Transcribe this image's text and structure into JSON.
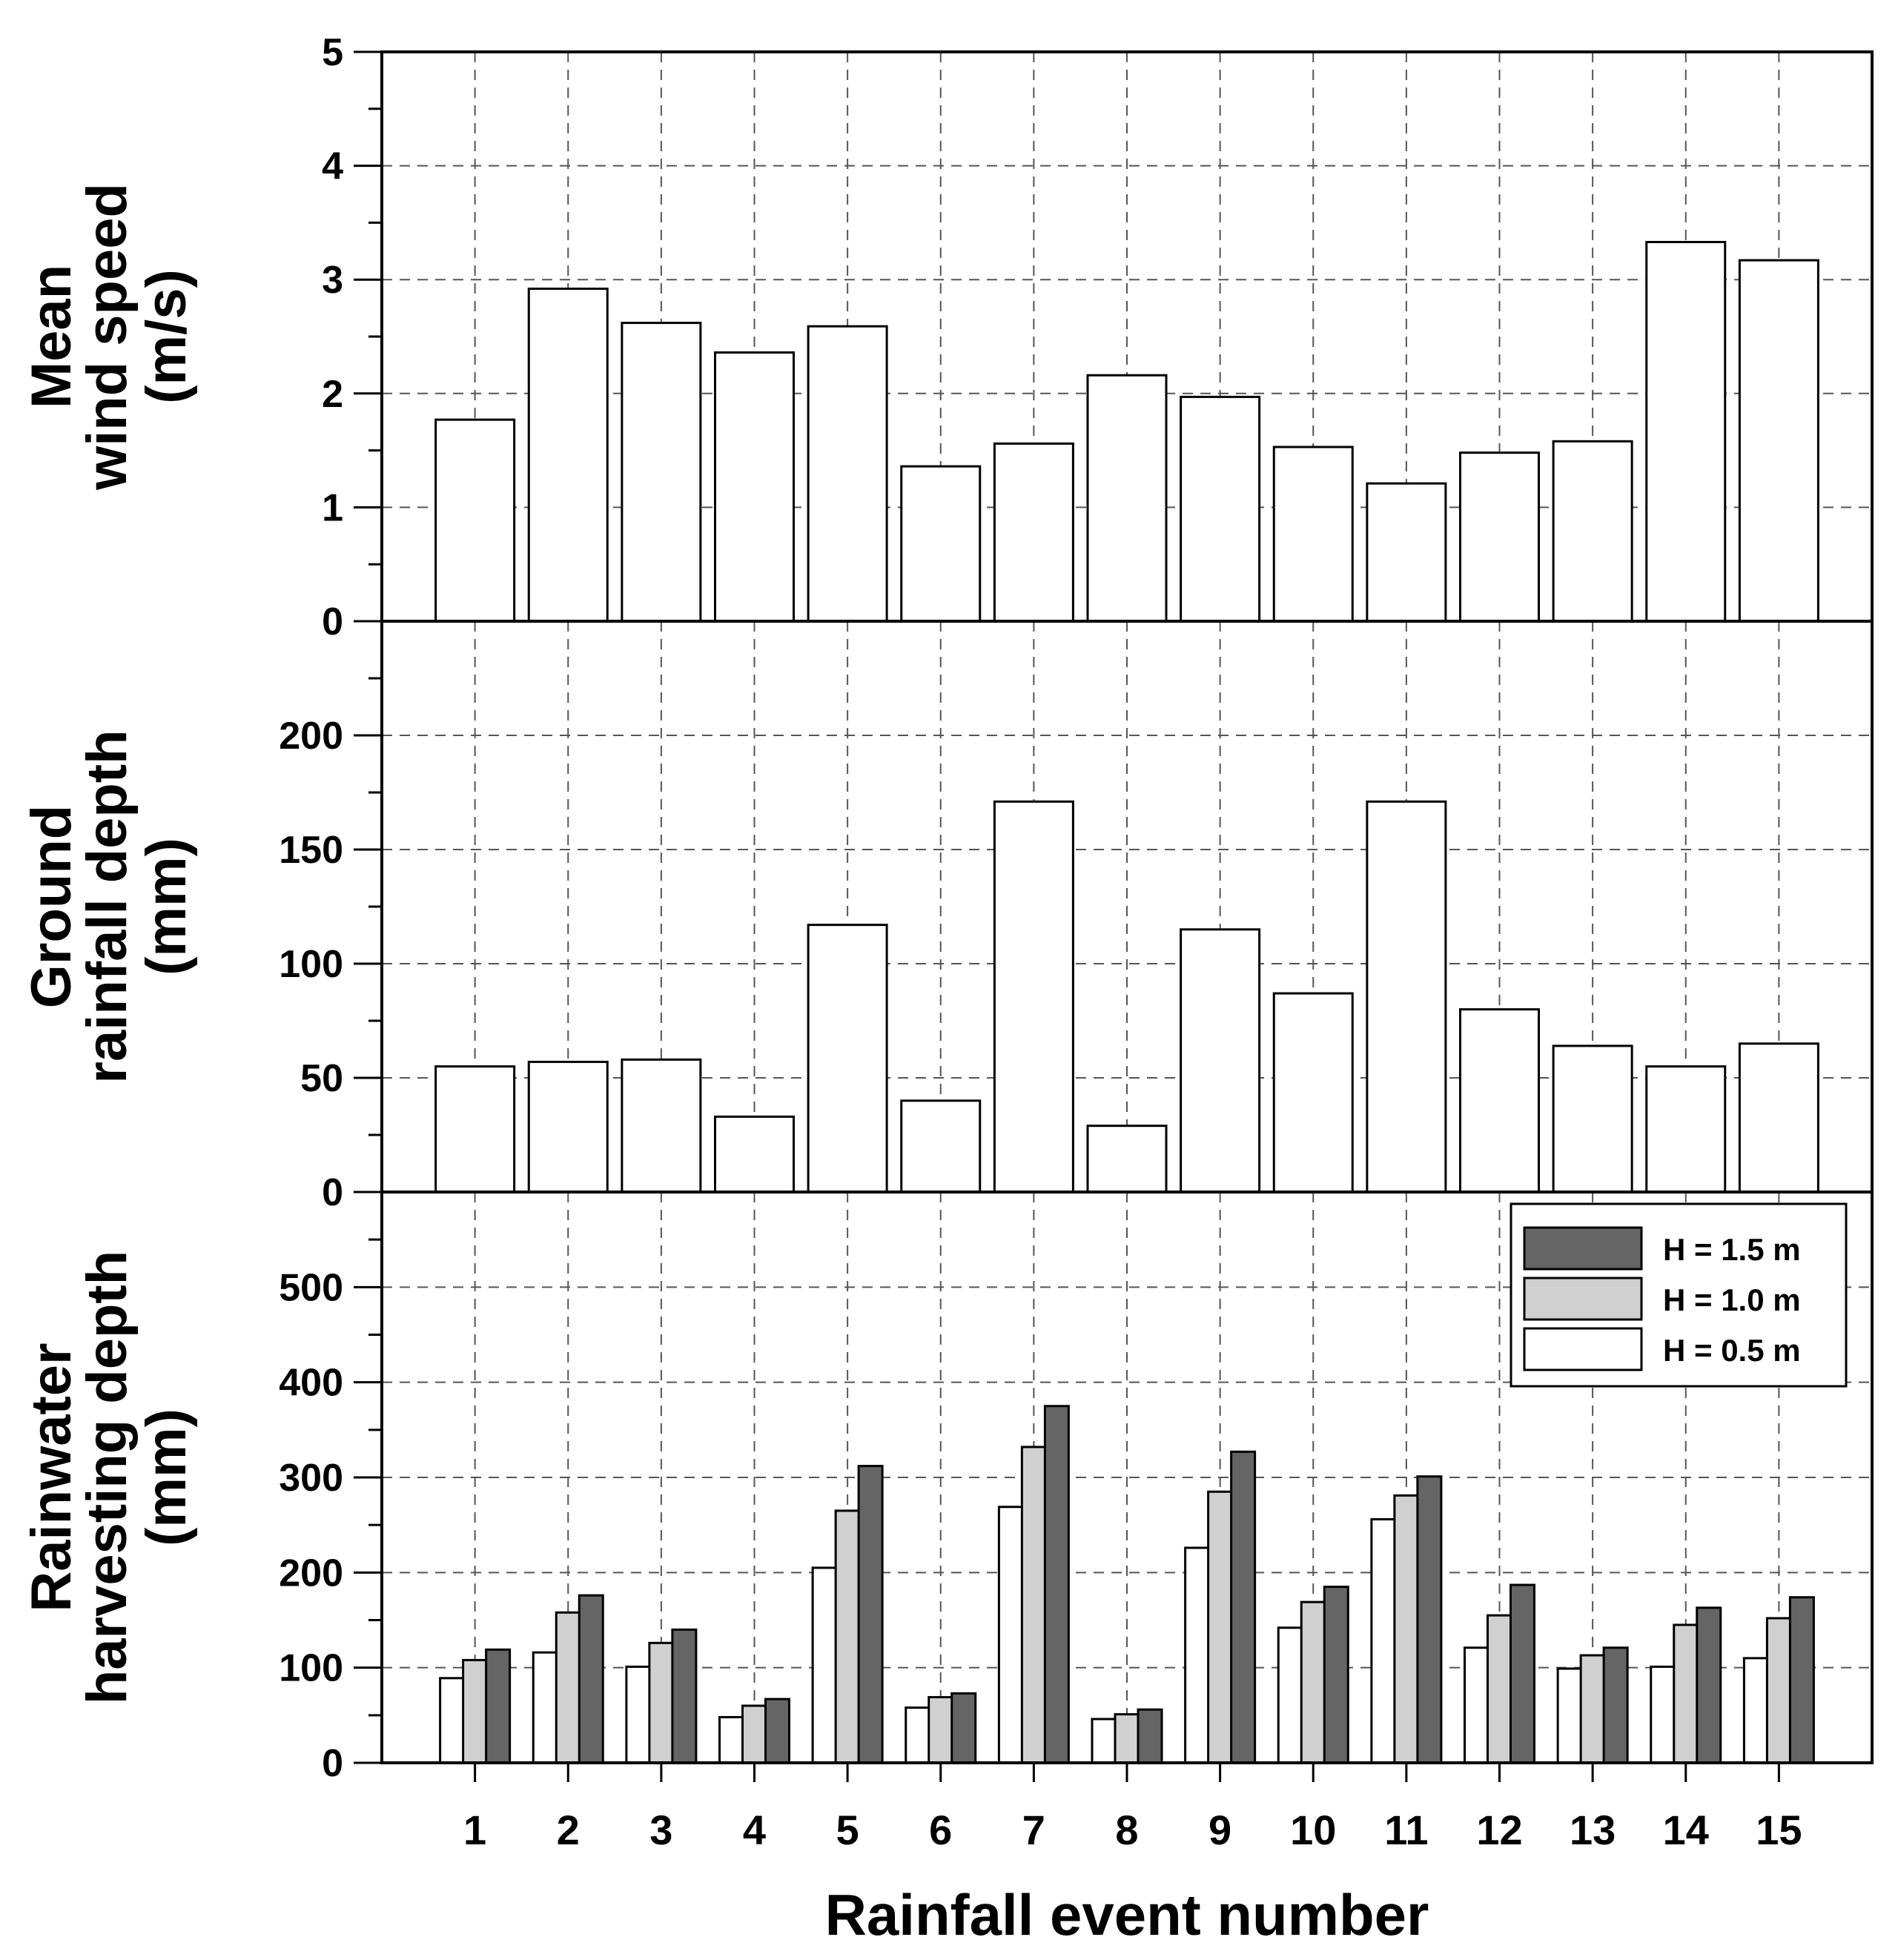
{
  "chart_data": [
    {
      "type": "bar",
      "id": "wind",
      "ylabel_lines": [
        "Mean",
        "wind speed",
        "(m/s)"
      ],
      "categories": [
        "1",
        "2",
        "3",
        "4",
        "5",
        "6",
        "7",
        "8",
        "9",
        "10",
        "11",
        "12",
        "13",
        "14",
        "15"
      ],
      "series": [
        {
          "name": "Mean wind speed",
          "color": "#ffffff",
          "values": [
            1.77,
            2.92,
            2.62,
            2.36,
            2.59,
            1.36,
            1.56,
            2.16,
            1.97,
            1.53,
            1.21,
            1.48,
            1.58,
            3.33,
            3.17
          ]
        }
      ],
      "ylim": [
        0,
        5
      ],
      "yticks": [
        "0",
        "1",
        "2",
        "3",
        "4",
        "5"
      ],
      "grid": true
    },
    {
      "type": "bar",
      "id": "rain",
      "ylabel_lines": [
        "Ground",
        "rainfall depth",
        "(mm)"
      ],
      "categories": [
        "1",
        "2",
        "3",
        "4",
        "5",
        "6",
        "7",
        "8",
        "9",
        "10",
        "11",
        "12",
        "13",
        "14",
        "15"
      ],
      "series": [
        {
          "name": "Ground rainfall depth",
          "color": "#ffffff",
          "values": [
            55,
            57,
            58,
            33,
            117,
            40,
            171,
            29,
            115,
            87,
            171,
            80,
            64,
            55,
            65
          ]
        }
      ],
      "ylim": [
        0,
        250
      ],
      "yticks": [
        "0",
        "50",
        "100",
        "150",
        "200"
      ],
      "grid": true
    },
    {
      "type": "bar",
      "id": "harvest",
      "ylabel_lines": [
        "Rainwater",
        "harvesting depth",
        "(mm)"
      ],
      "categories": [
        "1",
        "2",
        "3",
        "4",
        "5",
        "6",
        "7",
        "8",
        "9",
        "10",
        "11",
        "12",
        "13",
        "14",
        "15"
      ],
      "series": [
        {
          "name": "H = 0.5 m",
          "color": "#ffffff",
          "values": [
            89,
            116,
            101,
            48,
            205,
            58,
            269,
            46,
            226,
            142,
            256,
            121,
            99,
            101,
            110
          ]
        },
        {
          "name": "H = 1.0 m",
          "color": "#d0d0d0",
          "values": [
            108,
            158,
            126,
            60,
            265,
            69,
            332,
            51,
            285,
            169,
            281,
            155,
            113,
            145,
            152
          ]
        },
        {
          "name": "H = 1.5 m",
          "color": "#656565",
          "values": [
            119,
            176,
            140,
            67,
            312,
            73,
            375,
            56,
            327,
            185,
            301,
            187,
            121,
            163,
            174
          ]
        }
      ],
      "legend_order": [
        "H = 1.5 m",
        "H = 1.0 m",
        "H = 0.5 m"
      ],
      "legend_position": "top-right",
      "ylim": [
        0,
        600
      ],
      "yticks": [
        "0",
        "100",
        "200",
        "300",
        "400",
        "500"
      ],
      "grid": true
    }
  ],
  "xlabel": "Rainfall event number"
}
